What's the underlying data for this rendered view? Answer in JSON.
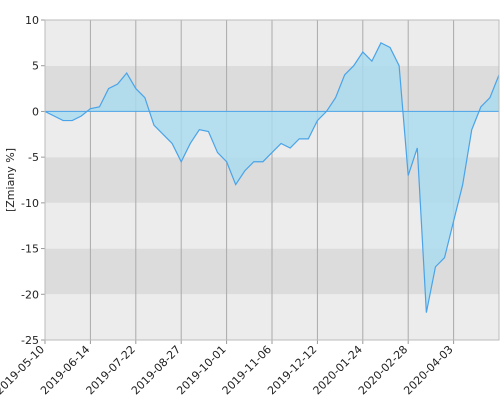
{
  "chart_data": {
    "type": "area",
    "y_label": "[Zmiany %]",
    "categories": [
      "2019-05-10",
      null,
      null,
      null,
      null,
      "2019-06-14",
      null,
      null,
      null,
      null,
      "2019-07-22",
      null,
      null,
      null,
      null,
      "2019-08-27",
      null,
      null,
      null,
      null,
      "2019-10-01",
      null,
      null,
      null,
      null,
      "2019-11-06",
      null,
      null,
      null,
      null,
      "2019-12-12",
      null,
      null,
      null,
      null,
      "2020-01-24",
      null,
      null,
      null,
      null,
      "2020-02-28",
      null,
      null,
      null,
      null,
      "2020-04-03",
      null,
      null,
      null,
      null,
      null
    ],
    "values": [
      0,
      -0.5,
      -1,
      -1,
      -0.5,
      0.3,
      0.5,
      2.5,
      3,
      4.2,
      2.5,
      1.5,
      -1.5,
      -2.5,
      -3.5,
      -5.5,
      -3.5,
      -2,
      -2.2,
      -4.5,
      -5.5,
      -8,
      -6.5,
      -5.5,
      -5.5,
      -4.5,
      -3.5,
      -4,
      -3,
      -3,
      -1,
      0,
      1.5,
      4,
      5,
      6.5,
      5.5,
      7.5,
      7,
      5,
      -7,
      -4,
      -22,
      -17,
      -16,
      -12,
      -8,
      -2,
      0.5,
      1.5,
      4
    ],
    "color": "#4aa3e8",
    "fill": "#a8dcef",
    "ylim": [
      -25,
      10
    ],
    "yticks": [
      -25,
      -20,
      -15,
      -10,
      -5,
      0,
      5,
      10
    ],
    "band_colors": [
      "#ececec",
      "#dcdcdc"
    ],
    "grid": true
  }
}
